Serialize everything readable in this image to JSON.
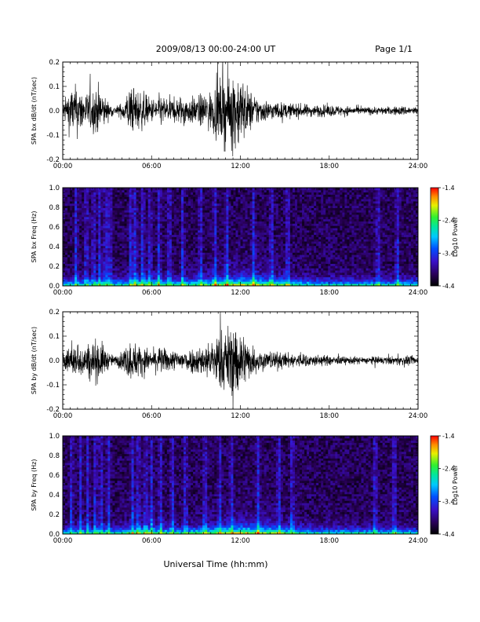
{
  "header": {
    "title": "2009/08/13  00:00-24:00 UT",
    "page": "Page 1/1"
  },
  "footer": {
    "xlabel": "Universal Time (hh:mm)"
  },
  "colors": {
    "background": "#ffffff",
    "trace": "#000000",
    "frame": "#000000"
  },
  "chart_data": [
    {
      "type": "line",
      "ylabel": "SPA bx dB/dt (nT/sec)",
      "xlim": [
        0,
        24
      ],
      "ylim": [
        -0.2,
        0.2
      ],
      "yticks": [
        "0.2",
        "0.1",
        "0.0",
        "-0.1",
        "-0.2"
      ],
      "yvals": [
        0.2,
        0.1,
        0.0,
        -0.1,
        -0.2
      ],
      "xticks": [
        "00:00",
        "06:00",
        "12:00",
        "18:00",
        "24:00"
      ],
      "xvals": [
        0,
        6,
        12,
        18,
        24
      ],
      "envelope_hours": [
        0,
        0.5,
        1,
        1.5,
        2,
        2.5,
        3,
        3.5,
        4,
        4.5,
        5,
        5.5,
        6,
        6.5,
        7,
        7.5,
        8,
        8.5,
        9,
        9.5,
        10,
        10.5,
        11,
        11.5,
        12,
        12.5,
        13,
        13.5,
        14,
        15,
        16,
        17,
        18,
        19,
        20,
        21,
        22,
        23,
        24
      ],
      "envelope_amplitude": [
        0.04,
        0.12,
        0.13,
        0.09,
        0.11,
        0.13,
        0.05,
        0.02,
        0.04,
        0.12,
        0.11,
        0.09,
        0.06,
        0.08,
        0.07,
        0.06,
        0.08,
        0.07,
        0.07,
        0.09,
        0.1,
        0.15,
        0.18,
        0.21,
        0.19,
        0.12,
        0.08,
        0.06,
        0.05,
        0.04,
        0.035,
        0.03,
        0.03,
        0.025,
        0.02,
        0.02,
        0.02,
        0.025,
        0.02
      ]
    },
    {
      "type": "heatmap",
      "ylabel": "SPA bx Freq (Hz)",
      "xlim": [
        0,
        24
      ],
      "ylim": [
        0,
        1.0
      ],
      "yticks": [
        "1.0",
        "0.8",
        "0.6",
        "0.4",
        "0.2",
        "0.0"
      ],
      "yvals": [
        1.0,
        0.8,
        0.6,
        0.4,
        0.2,
        0.0
      ],
      "xticks": [
        "00:00",
        "06:00",
        "12:00",
        "18:00",
        "24:00"
      ],
      "xvals": [
        0,
        6,
        12,
        18,
        24
      ],
      "colorbar": {
        "label": "Log10 Power",
        "range": [
          -4.4,
          -1.4
        ],
        "ticks": [
          "-1.4",
          "-2.4",
          "-3.4",
          "-4.4"
        ],
        "tick_values": [
          -1.4,
          -2.4,
          -3.4,
          -4.4
        ]
      },
      "vertical_features_hours": [
        0.9,
        1.6,
        2.1,
        2.5,
        2.9,
        3.2,
        4.6,
        4.9,
        5.4,
        5.9,
        6.5,
        7.2,
        8.1,
        9.3,
        10.3,
        11.1,
        12.9,
        14.1,
        15.2,
        21.3,
        22.6
      ]
    },
    {
      "type": "line",
      "ylabel": "SPA by dB/dt (nT/sec)",
      "xlim": [
        0,
        24
      ],
      "ylim": [
        -0.2,
        0.2
      ],
      "yticks": [
        "0.2",
        "0.1",
        "0.0",
        "-0.1",
        "-0.2"
      ],
      "yvals": [
        0.2,
        0.1,
        0.0,
        -0.1,
        -0.2
      ],
      "xticks": [
        "00:00",
        "06:00",
        "12:00",
        "18:00",
        "24:00"
      ],
      "xvals": [
        0,
        6,
        12,
        18,
        24
      ],
      "envelope_hours": [
        0,
        0.5,
        1,
        1.5,
        2,
        2.5,
        3,
        3.5,
        4,
        4.5,
        5,
        5.5,
        6,
        6.5,
        7,
        7.5,
        8,
        8.5,
        9,
        9.5,
        10,
        10.5,
        11,
        11.5,
        12,
        12.5,
        13,
        13.5,
        14,
        15,
        16,
        17,
        18,
        19,
        20,
        21,
        22,
        23,
        24
      ],
      "envelope_amplitude": [
        0.05,
        0.07,
        0.09,
        0.08,
        0.1,
        0.11,
        0.05,
        0.02,
        0.05,
        0.1,
        0.09,
        0.07,
        0.05,
        0.07,
        0.06,
        0.05,
        0.06,
        0.06,
        0.07,
        0.08,
        0.1,
        0.14,
        0.17,
        0.19,
        0.18,
        0.1,
        0.07,
        0.05,
        0.05,
        0.04,
        0.035,
        0.03,
        0.025,
        0.02,
        0.02,
        0.02,
        0.02,
        0.025,
        0.02
      ]
    },
    {
      "type": "heatmap",
      "ylabel": "SPA by Freq (Hz)",
      "xlim": [
        0,
        24
      ],
      "ylim": [
        0,
        1.0
      ],
      "yticks": [
        "1.0",
        "0.8",
        "0.6",
        "0.4",
        "0.2",
        "0.0"
      ],
      "yvals": [
        1.0,
        0.8,
        0.6,
        0.4,
        0.2,
        0.0
      ],
      "xticks": [
        "00:00",
        "06:00",
        "12:00",
        "18:00",
        "24:00"
      ],
      "xvals": [
        0,
        6,
        12,
        18,
        24
      ],
      "colorbar": {
        "label": "Log10 Power",
        "range": [
          -4.4,
          -1.4
        ],
        "ticks": [
          "-1.4",
          "-2.4",
          "-3.4",
          "-4.4"
        ],
        "tick_values": [
          -1.4,
          -2.4,
          -3.4,
          -4.4
        ]
      },
      "vertical_features_hours": [
        0.6,
        1.2,
        1.7,
        2.2,
        2.6,
        3.1,
        4.7,
        5.1,
        5.6,
        6.0,
        6.6,
        7.4,
        8.3,
        9.6,
        10.6,
        11.4,
        13.2,
        14.6,
        15.5,
        21.1,
        22.4
      ]
    }
  ]
}
